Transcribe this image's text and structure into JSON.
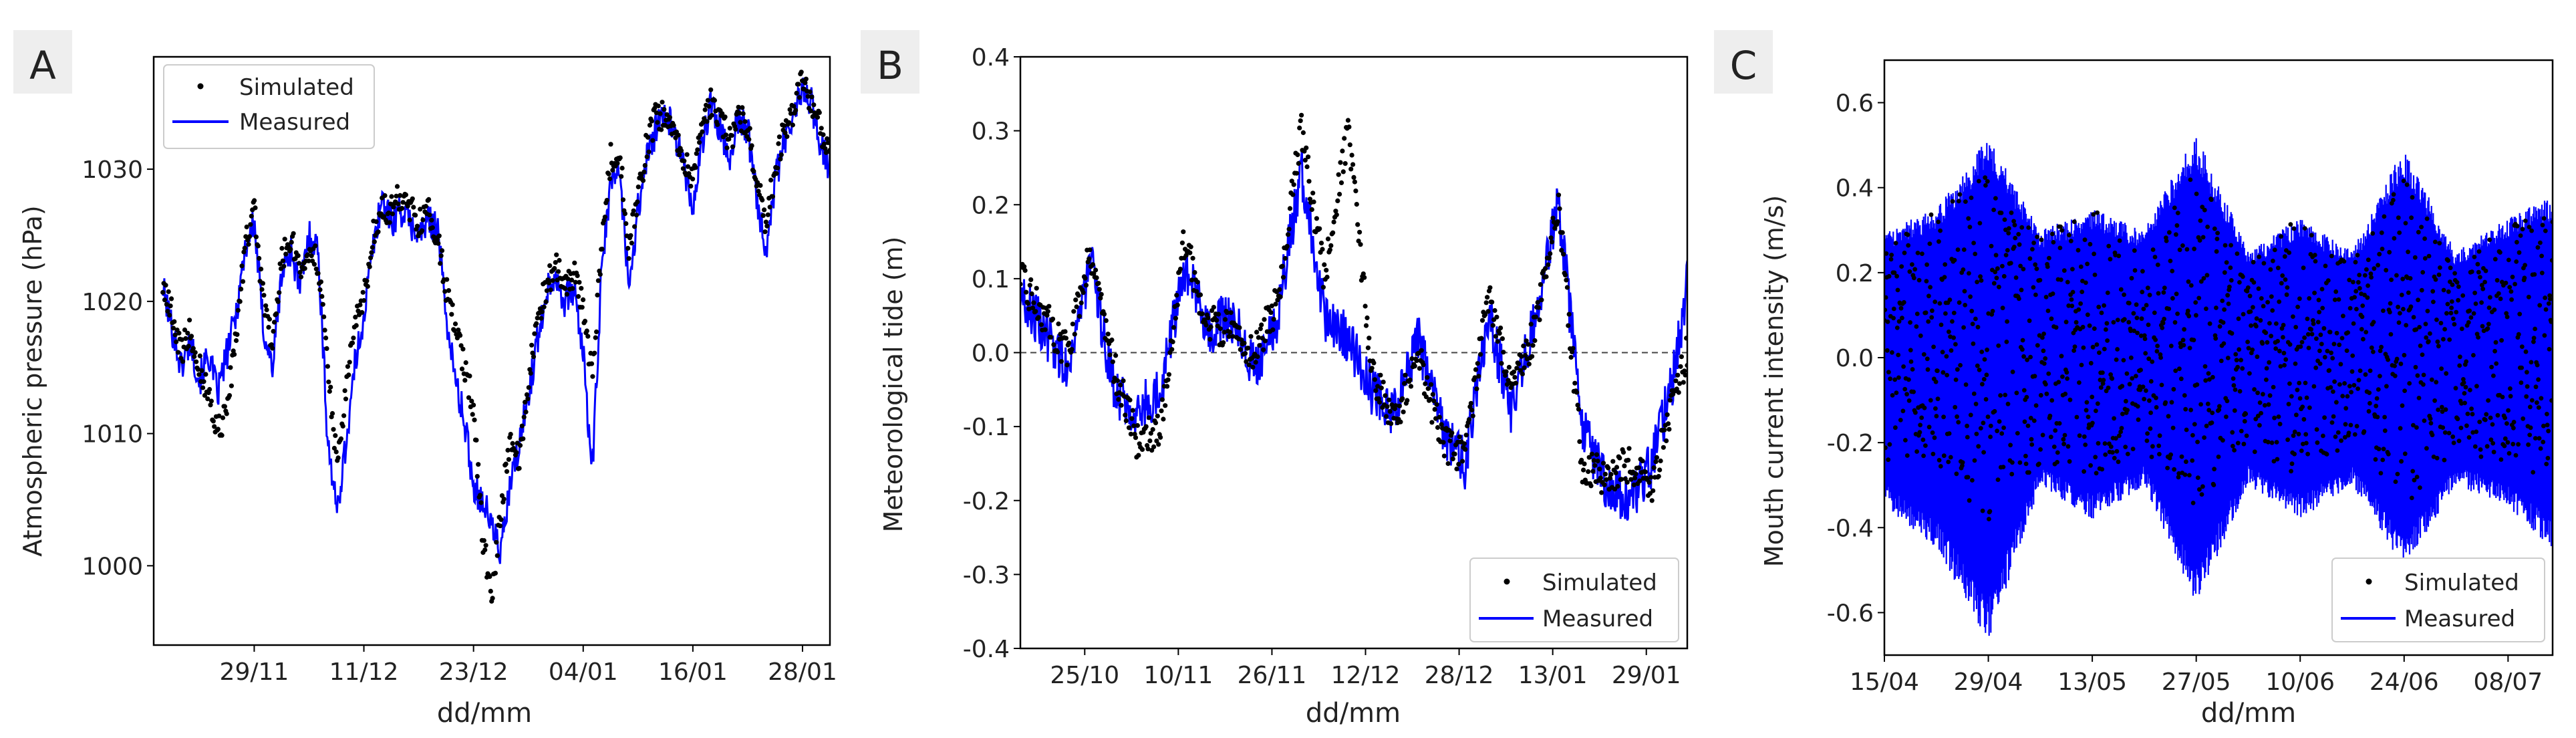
{
  "colors": {
    "simulated": "#000000",
    "measured": "#0000ff",
    "panel_label_bg": "#eeeeee",
    "zero_line": "#444444"
  },
  "panels": [
    {
      "label": "A",
      "legend": {
        "simulated": "Simulated",
        "measured": "Measured",
        "position": "top-left"
      },
      "xlabel": "dd/mm",
      "ylabel": "Atmospheric pressure (hPa)"
    },
    {
      "label": "B",
      "legend": {
        "simulated": "Simulated",
        "measured": "Measured",
        "position": "bottom-right"
      },
      "xlabel": "dd/mm",
      "ylabel": "Meteorological tide (m)"
    },
    {
      "label": "C",
      "legend": {
        "simulated": "Simulated",
        "measured": "Measured",
        "position": "bottom-right"
      },
      "xlabel": "dd/mm",
      "ylabel": "Mouth current intensity (m/s)"
    }
  ],
  "chart_data": [
    {
      "type": "line",
      "title": "",
      "xlabel": "dd/mm",
      "ylabel": "Atmospheric pressure (hPa)",
      "xlim": [
        "2018-11-18",
        "2019-01-31"
      ],
      "ylim": [
        994,
        1038.5
      ],
      "x_ticks": [
        "29/11",
        "11/12",
        "23/12",
        "04/01",
        "16/01",
        "28/01"
      ],
      "x_tick_dates": [
        "2018-11-29",
        "2018-12-11",
        "2018-12-23",
        "2019-01-04",
        "2019-01-16",
        "2019-01-28"
      ],
      "y_ticks": [
        1000,
        1010,
        1020,
        1030
      ],
      "legend_position": "top-left",
      "grid": false,
      "series": [
        {
          "name": "Measured",
          "style": "line",
          "x": [
            "2018-11-19",
            "2018-11-20",
            "2018-11-21",
            "2018-11-22",
            "2018-11-23",
            "2018-11-24",
            "2018-11-25",
            "2018-11-26",
            "2018-11-27",
            "2018-11-28",
            "2018-11-29",
            "2018-11-30",
            "2018-12-01",
            "2018-12-02",
            "2018-12-03",
            "2018-12-04",
            "2018-12-05",
            "2018-12-06",
            "2018-12-07",
            "2018-12-08",
            "2018-12-09",
            "2018-12-10",
            "2018-12-11",
            "2018-12-12",
            "2018-12-13",
            "2018-12-14",
            "2018-12-15",
            "2018-12-16",
            "2018-12-17",
            "2018-12-18",
            "2018-12-19",
            "2018-12-20",
            "2018-12-21",
            "2018-12-22",
            "2018-12-23",
            "2018-12-24",
            "2018-12-25",
            "2018-12-26",
            "2018-12-27",
            "2018-12-28",
            "2018-12-29",
            "2018-12-30",
            "2018-12-31",
            "2019-01-01",
            "2019-01-02",
            "2019-01-03",
            "2019-01-04",
            "2019-01-05",
            "2019-01-06",
            "2019-01-07",
            "2019-01-08",
            "2019-01-09",
            "2019-01-10",
            "2019-01-11",
            "2019-01-12",
            "2019-01-13",
            "2019-01-14",
            "2019-01-15",
            "2019-01-16",
            "2019-01-17",
            "2019-01-18",
            "2019-01-19",
            "2019-01-20",
            "2019-01-21",
            "2019-01-22",
            "2019-01-23",
            "2019-01-24",
            "2019-01-25",
            "2019-01-26",
            "2019-01-27",
            "2019-01-28",
            "2019-01-29",
            "2019-01-30",
            "2019-01-31"
          ],
          "values": [
            1021,
            1018,
            1015,
            1017,
            1014,
            1016,
            1013,
            1016,
            1019,
            1024,
            1026,
            1018,
            1015,
            1022,
            1024,
            1021,
            1025,
            1024,
            1010,
            1004,
            1009,
            1015,
            1019,
            1024,
            1028,
            1026,
            1027,
            1026,
            1025,
            1026,
            1026,
            1019,
            1014,
            1011,
            1006,
            1005,
            1003,
            1001,
            1006,
            1009,
            1013,
            1017,
            1021,
            1022,
            1020,
            1021,
            1016,
            1007,
            1022,
            1029,
            1030,
            1021,
            1027,
            1031,
            1033,
            1034,
            1033,
            1030,
            1027,
            1032,
            1035,
            1033,
            1031,
            1034,
            1033,
            1028,
            1024,
            1029,
            1032,
            1034,
            1036,
            1035,
            1032,
            1030
          ]
        },
        {
          "name": "Simulated",
          "style": "points",
          "x": [
            "2018-11-19",
            "2018-11-20",
            "2018-11-21",
            "2018-11-22",
            "2018-11-23",
            "2018-11-24",
            "2018-11-25",
            "2018-11-26",
            "2018-11-27",
            "2018-11-28",
            "2018-11-29",
            "2018-11-30",
            "2018-12-01",
            "2018-12-02",
            "2018-12-03",
            "2018-12-04",
            "2018-12-05",
            "2018-12-06",
            "2018-12-07",
            "2018-12-08",
            "2018-12-09",
            "2018-12-10",
            "2018-12-11",
            "2018-12-12",
            "2018-12-13",
            "2018-12-14",
            "2018-12-15",
            "2018-12-16",
            "2018-12-17",
            "2018-12-18",
            "2018-12-19",
            "2018-12-20",
            "2018-12-21",
            "2018-12-22",
            "2018-12-23",
            "2018-12-24",
            "2018-12-25",
            "2018-12-26",
            "2018-12-27",
            "2018-12-28",
            "2018-12-29",
            "2018-12-30",
            "2018-12-31",
            "2019-01-01",
            "2019-01-02",
            "2019-01-03",
            "2019-01-04",
            "2019-01-05",
            "2019-01-06",
            "2019-01-07",
            "2019-01-08",
            "2019-01-09",
            "2019-01-10",
            "2019-01-11",
            "2019-01-12",
            "2019-01-13",
            "2019-01-14",
            "2019-01-15",
            "2019-01-16",
            "2019-01-17",
            "2019-01-18",
            "2019-01-19",
            "2019-01-20",
            "2019-01-21",
            "2019-01-22",
            "2019-01-23",
            "2019-01-24",
            "2019-01-25",
            "2019-01-26",
            "2019-01-27",
            "2019-01-28",
            "2019-01-29",
            "2019-01-30",
            "2019-01-31"
          ],
          "values": [
            1021,
            1019,
            1016,
            1018,
            1015,
            1013,
            1010,
            1012,
            1017,
            1024,
            1027,
            1020,
            1017,
            1023,
            1025,
            1022,
            1024,
            1023,
            1015,
            1008,
            1013,
            1018,
            1020,
            1025,
            1027,
            1027,
            1028,
            1027,
            1026,
            1027,
            1025,
            1021,
            1018,
            1015,
            1012,
            1002,
            998,
            1004,
            1010,
            1008,
            1014,
            1019,
            1021,
            1023,
            1021,
            1022,
            1020,
            1014,
            1024,
            1031,
            1031,
            1024,
            1028,
            1032,
            1034,
            1034,
            1033,
            1031,
            1029,
            1033,
            1035,
            1034,
            1032,
            1034,
            1033,
            1029,
            1026,
            1030,
            1033,
            1034,
            1037,
            1035,
            1033,
            1031
          ]
        }
      ]
    },
    {
      "type": "line",
      "title": "",
      "xlabel": "dd/mm",
      "ylabel": "Meteorological tide (m)",
      "xlim": [
        "2018-10-14",
        "2019-02-05"
      ],
      "ylim": [
        -0.4,
        0.4
      ],
      "x_ticks": [
        "25/10",
        "10/11",
        "26/11",
        "12/12",
        "28/12",
        "13/01",
        "29/01"
      ],
      "x_tick_dates": [
        "2018-10-25",
        "2018-11-10",
        "2018-11-26",
        "2018-12-12",
        "2018-12-28",
        "2019-01-13",
        "2019-01-29"
      ],
      "y_ticks": [
        -0.4,
        -0.3,
        -0.2,
        -0.1,
        0.0,
        0.1,
        0.2,
        0.3,
        0.4
      ],
      "reference_line": {
        "y": 0.0,
        "style": "dashed"
      },
      "legend_position": "bottom-right",
      "grid": false,
      "series": [
        {
          "name": "Measured",
          "style": "line",
          "x": [
            "2018-10-14",
            "2018-10-18",
            "2018-10-22",
            "2018-10-26",
            "2018-10-30",
            "2018-11-03",
            "2018-11-07",
            "2018-11-11",
            "2018-11-15",
            "2018-11-19",
            "2018-11-23",
            "2018-11-27",
            "2018-12-01",
            "2018-12-05",
            "2018-12-09",
            "2018-12-13",
            "2018-12-17",
            "2018-12-21",
            "2018-12-25",
            "2018-12-29",
            "2019-01-02",
            "2019-01-06",
            "2019-01-10",
            "2019-01-14",
            "2019-01-18",
            "2019-01-22",
            "2019-01-26",
            "2019-01-30",
            "2019-02-03",
            "2019-02-05"
          ],
          "values": [
            0.08,
            0.03,
            -0.02,
            0.12,
            -0.05,
            -0.08,
            -0.05,
            0.12,
            0.03,
            0.05,
            -0.02,
            0.05,
            0.25,
            0.05,
            0.02,
            -0.05,
            -0.08,
            0.02,
            -0.1,
            -0.15,
            0.05,
            -0.08,
            0.05,
            0.2,
            -0.1,
            -0.18,
            -0.2,
            -0.15,
            -0.02,
            0.1
          ]
        },
        {
          "name": "Simulated",
          "style": "points",
          "x": [
            "2018-10-14",
            "2018-10-18",
            "2018-10-22",
            "2018-10-26",
            "2018-10-30",
            "2018-11-03",
            "2018-11-07",
            "2018-11-11",
            "2018-11-15",
            "2018-11-19",
            "2018-11-23",
            "2018-11-27",
            "2018-12-01",
            "2018-12-05",
            "2018-12-09",
            "2018-12-13",
            "2018-12-17",
            "2018-12-21",
            "2018-12-25",
            "2018-12-29",
            "2019-01-02",
            "2019-01-06",
            "2019-01-10",
            "2019-01-14",
            "2019-01-18",
            "2019-01-22",
            "2019-01-26",
            "2019-01-30",
            "2019-02-03",
            "2019-02-05"
          ],
          "values": [
            0.1,
            0.05,
            0.0,
            0.14,
            -0.02,
            -0.12,
            -0.1,
            0.15,
            0.04,
            0.03,
            0.0,
            0.07,
            0.3,
            0.1,
            0.3,
            -0.02,
            -0.1,
            0.0,
            -0.12,
            -0.14,
            0.08,
            -0.05,
            0.03,
            0.2,
            -0.15,
            -0.17,
            -0.15,
            -0.18,
            -0.05,
            0.0
          ]
        }
      ]
    },
    {
      "type": "line",
      "title": "",
      "xlabel": "dd/mm",
      "ylabel": "Mouth current intensity (m/s)",
      "xlim": [
        "2019-04-15",
        "2019-07-14"
      ],
      "ylim": [
        -0.7,
        0.7
      ],
      "x_ticks": [
        "15/04",
        "29/04",
        "13/05",
        "27/05",
        "10/06",
        "24/06",
        "08/07"
      ],
      "x_tick_dates": [
        "2019-04-15",
        "2019-04-29",
        "2019-05-13",
        "2019-05-27",
        "2019-06-10",
        "2019-06-24",
        "2019-07-08"
      ],
      "y_ticks": [
        -0.6,
        -0.4,
        -0.2,
        0.0,
        0.2,
        0.4,
        0.6
      ],
      "legend_position": "bottom-right",
      "grid": false,
      "series": [
        {
          "name": "Measured",
          "style": "oscillating band (upper / lower envelope)",
          "x": [
            "2019-04-15",
            "2019-04-22",
            "2019-04-29",
            "2019-05-06",
            "2019-05-13",
            "2019-05-20",
            "2019-05-27",
            "2019-06-03",
            "2019-06-10",
            "2019-06-17",
            "2019-06-24",
            "2019-07-01",
            "2019-07-08",
            "2019-07-14"
          ],
          "upper": [
            0.3,
            0.35,
            0.52,
            0.3,
            0.35,
            0.3,
            0.53,
            0.25,
            0.33,
            0.25,
            0.5,
            0.25,
            0.33,
            0.38
          ],
          "lower": [
            -0.35,
            -0.45,
            -0.67,
            -0.3,
            -0.38,
            -0.3,
            -0.58,
            -0.3,
            -0.38,
            -0.3,
            -0.5,
            -0.3,
            -0.35,
            -0.45
          ]
        },
        {
          "name": "Simulated",
          "style": "points (upper / lower envelope)",
          "x": [
            "2019-04-15",
            "2019-04-22",
            "2019-04-29",
            "2019-05-06",
            "2019-05-13",
            "2019-05-20",
            "2019-05-27",
            "2019-06-03",
            "2019-06-10",
            "2019-06-17",
            "2019-06-24",
            "2019-07-01",
            "2019-07-08",
            "2019-07-14"
          ],
          "upper": [
            0.32,
            0.35,
            0.43,
            0.28,
            0.36,
            0.25,
            0.45,
            0.22,
            0.34,
            0.22,
            0.43,
            0.2,
            0.32,
            0.33
          ],
          "lower": [
            -0.25,
            -0.25,
            -0.4,
            -0.25,
            -0.28,
            -0.22,
            -0.35,
            -0.22,
            -0.28,
            -0.2,
            -0.35,
            -0.22,
            -0.26,
            -0.28
          ]
        }
      ]
    }
  ]
}
